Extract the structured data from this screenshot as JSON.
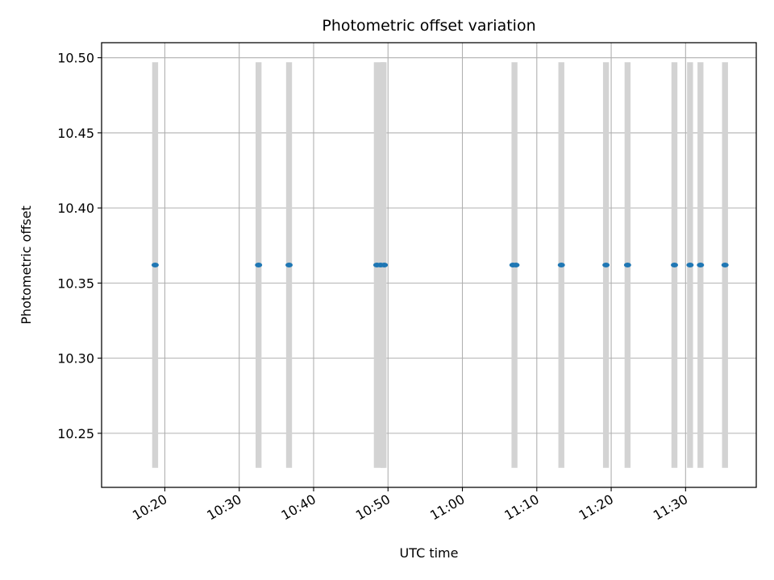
{
  "chart_data": {
    "type": "scatter",
    "title": "Photometric offset variation",
    "xlabel": "UTC time",
    "ylabel": "Photometric offset",
    "xlim": [
      "10:11:30",
      "11:39:30"
    ],
    "ylim": [
      10.214,
      10.51
    ],
    "grid": true,
    "x_ticks": [
      "10:20",
      "10:30",
      "10:40",
      "10:50",
      "11:00",
      "11:10",
      "11:20",
      "11:30"
    ],
    "y_ticks": [
      "10.25",
      "10.30",
      "10.35",
      "10.40",
      "10.45",
      "10.50"
    ],
    "band_range": [
      10.227,
      10.497
    ],
    "bands": [
      [
        "10:18:18",
        "10:19:06"
      ],
      [
        "10:32:12",
        "10:33:00"
      ],
      [
        "10:36:18",
        "10:37:06"
      ],
      [
        "10:48:06",
        "10:49:36"
      ],
      [
        "10:49:00",
        "10:49:48"
      ],
      [
        "11:06:36",
        "11:07:24"
      ],
      [
        "11:12:54",
        "11:13:42"
      ],
      [
        "11:18:54",
        "11:19:42"
      ],
      [
        "11:21:48",
        "11:22:36"
      ],
      [
        "11:28:06",
        "11:28:54"
      ],
      [
        "11:30:12",
        "11:31:00"
      ],
      [
        "11:31:36",
        "11:32:24"
      ],
      [
        "11:34:54",
        "11:35:42"
      ]
    ],
    "series": [
      {
        "color": "#1f77b4",
        "points": [
          [
            "10:18:42",
            10.362
          ],
          [
            "10:32:36",
            10.362
          ],
          [
            "10:36:42",
            10.362
          ],
          [
            "10:48:30",
            10.362
          ],
          [
            "10:49:00",
            10.362
          ],
          [
            "10:49:30",
            10.362
          ],
          [
            "11:06:48",
            10.362
          ],
          [
            "11:07:12",
            10.362
          ],
          [
            "11:13:18",
            10.362
          ],
          [
            "11:19:18",
            10.362
          ],
          [
            "11:22:12",
            10.362
          ],
          [
            "11:28:30",
            10.362
          ],
          [
            "11:30:36",
            10.362
          ],
          [
            "11:32:00",
            10.362
          ],
          [
            "11:35:18",
            10.362
          ]
        ]
      }
    ],
    "band_color": "#d3d3d3",
    "grid_color": "#b0b0b0"
  }
}
